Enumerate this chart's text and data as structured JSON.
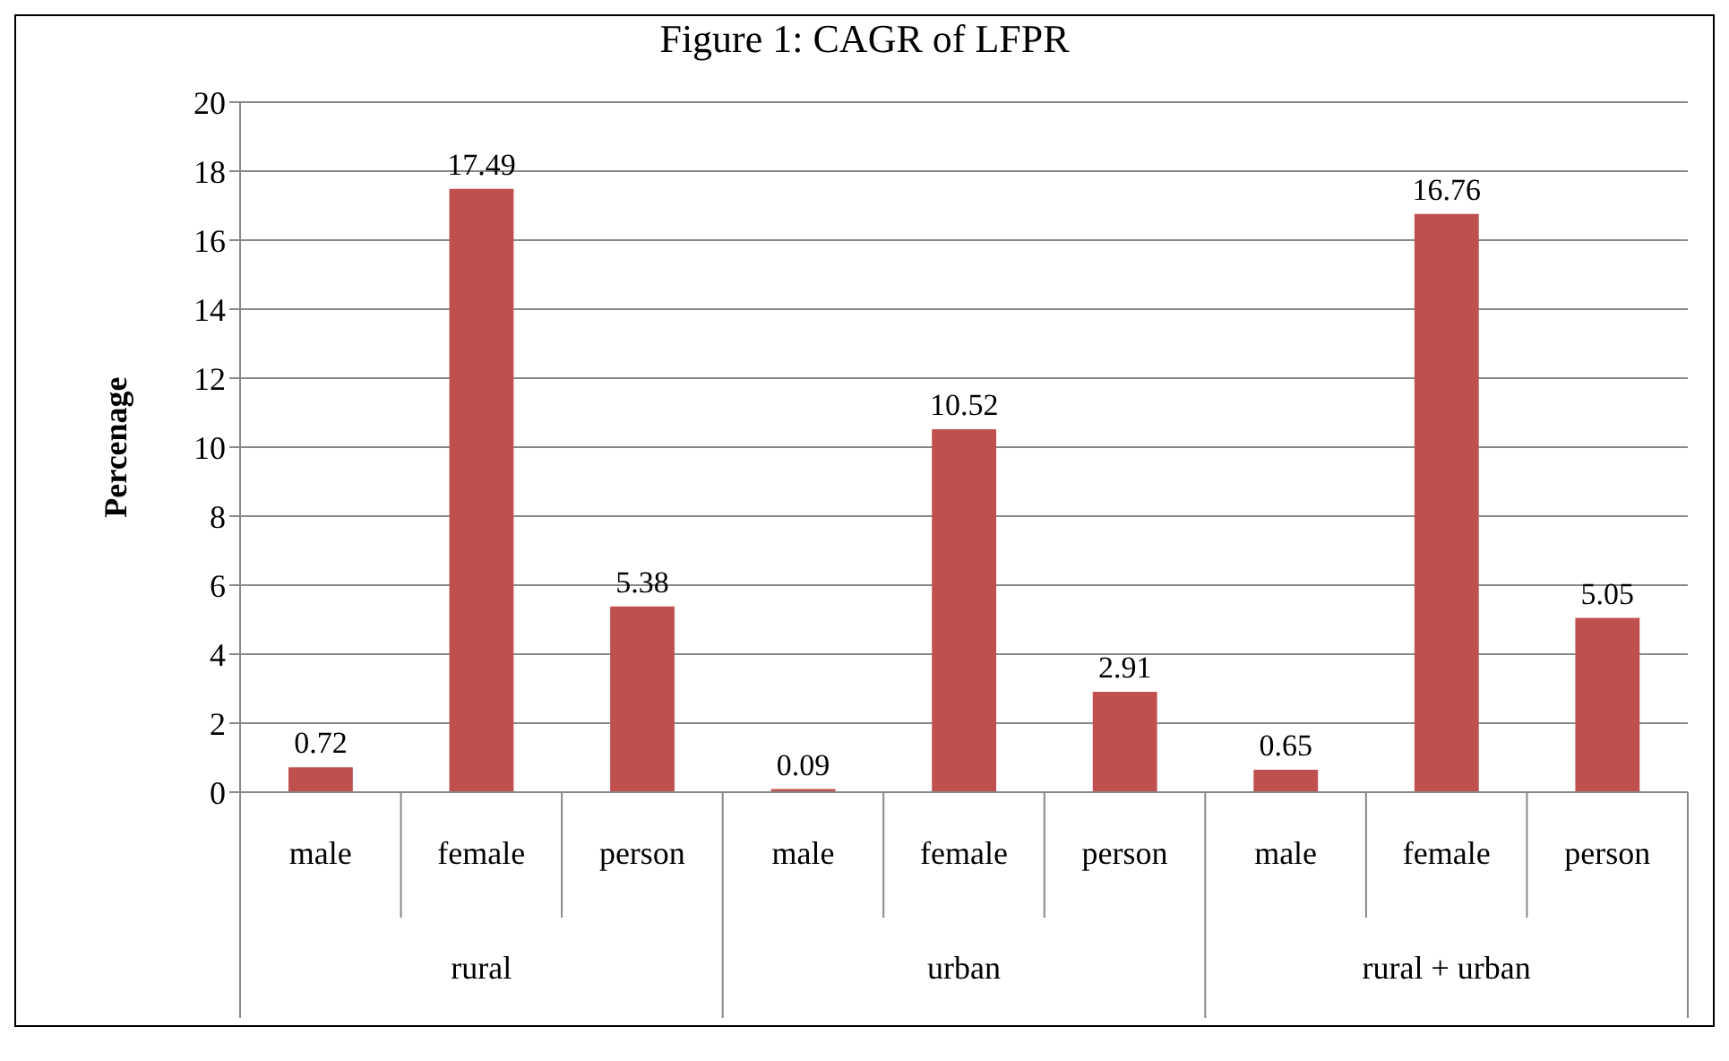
{
  "chart_data": {
    "type": "bar",
    "title": "Figure 1: CAGR of LFPR",
    "ylabel": "Percenage",
    "categories": [
      "male",
      "female",
      "person",
      "male",
      "female",
      "person",
      "male",
      "female",
      "person"
    ],
    "values": [
      0.72,
      17.49,
      5.38,
      0.09,
      10.52,
      2.91,
      0.65,
      16.76,
      5.05
    ],
    "color": "#c0504d",
    "annotations": [
      "rural",
      "urban",
      "rural + urban"
    ],
    "ylim": [
      0,
      20
    ],
    "yticks": [
      0,
      2,
      4,
      6,
      8,
      10,
      12,
      14,
      16,
      18,
      20
    ],
    "grid": "y",
    "data_labels": true
  }
}
